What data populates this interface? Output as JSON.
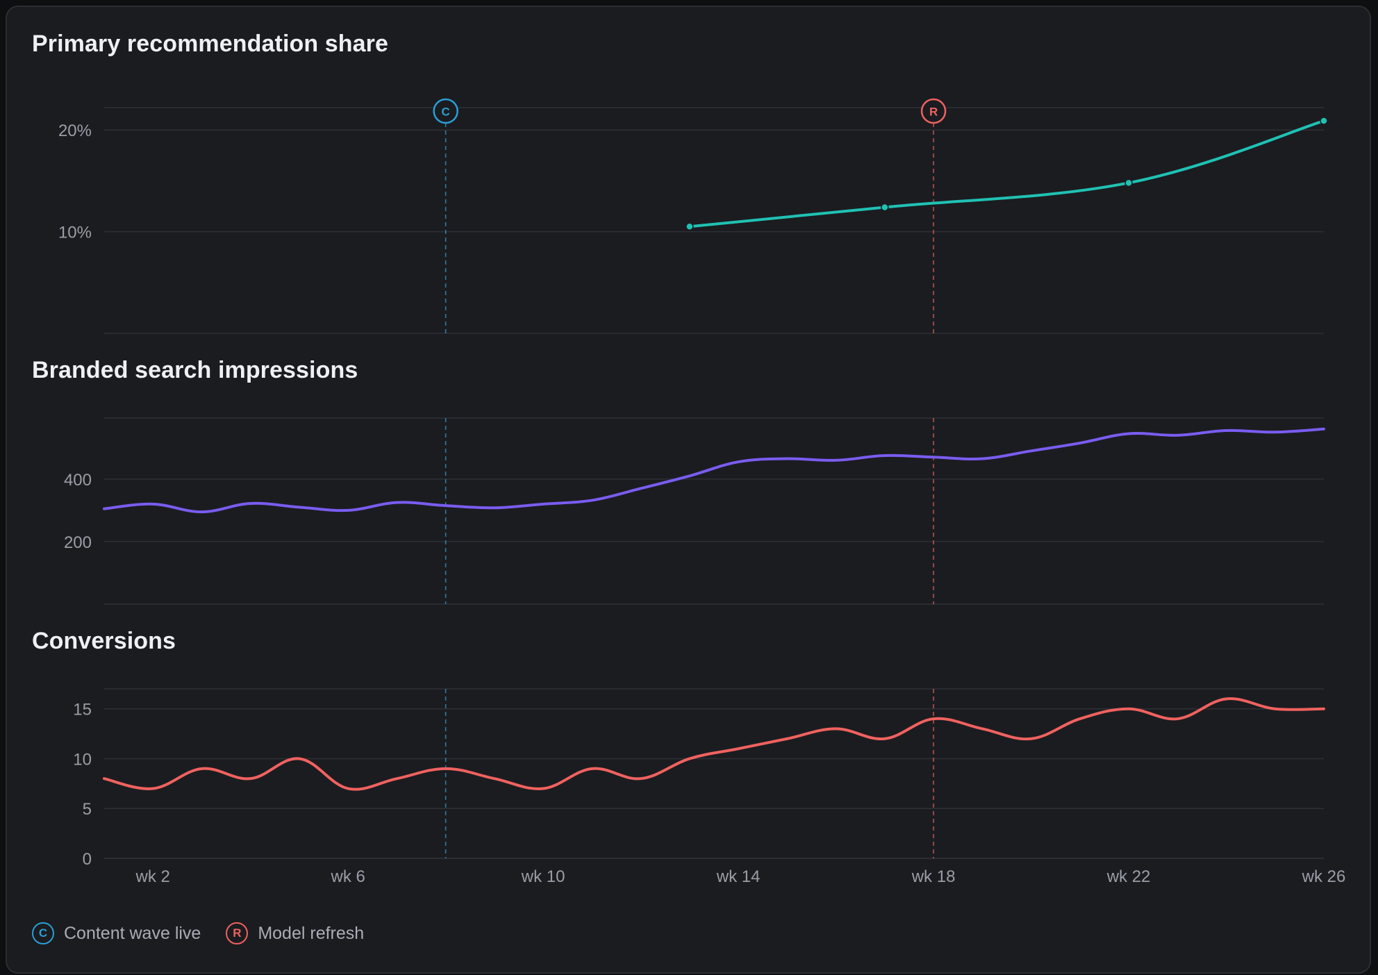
{
  "colors": {
    "background": "#1b1c20",
    "grid": "#2e3035",
    "tick_text": "#9a9ea6",
    "title_text": "#eef0f3",
    "content_wave": "#2a9fd6",
    "model_refresh": "#f0625f",
    "series_share": "#1fc2b4",
    "series_impressions": "#7a5cf0",
    "series_conversions": "#f0625f"
  },
  "markers": [
    {
      "id": "content_wave",
      "letter": "C",
      "label": "Content wave live",
      "x": 8,
      "color": "#2a9fd6"
    },
    {
      "id": "model_refresh",
      "letter": "R",
      "label": "Model refresh",
      "x": 18,
      "color": "#f0625f"
    }
  ],
  "chart_data": [
    {
      "type": "line",
      "title": "Primary recommendation share",
      "xlim": [
        1,
        26
      ],
      "ylim": [
        0,
        22.2
      ],
      "yticks": [
        {
          "value": 10,
          "label": "10%"
        },
        {
          "value": 20,
          "label": "20%"
        }
      ],
      "series": [
        {
          "color": "#1fc2b4",
          "marker_points": true,
          "x": [
            13,
            17,
            22,
            26
          ],
          "y": [
            10.5,
            12.4,
            14.8,
            20.9
          ]
        }
      ]
    },
    {
      "type": "line",
      "title": "Branded search impressions",
      "xlim": [
        1,
        26
      ],
      "ylim": [
        0,
        595
      ],
      "yticks": [
        {
          "value": 200,
          "label": "200"
        },
        {
          "value": 400,
          "label": "400"
        }
      ],
      "series": [
        {
          "color": "#7a5cf0",
          "marker_points": false,
          "x": [
            1,
            2,
            3,
            4,
            5,
            6,
            7,
            8,
            9,
            10,
            11,
            12,
            13,
            14,
            15,
            16,
            17,
            18,
            19,
            20,
            21,
            22,
            23,
            24,
            25,
            26
          ],
          "y": [
            305,
            320,
            295,
            322,
            310,
            300,
            325,
            315,
            308,
            320,
            332,
            370,
            410,
            455,
            465,
            460,
            475,
            470,
            465,
            490,
            515,
            545,
            540,
            555,
            550,
            560
          ]
        }
      ]
    },
    {
      "type": "line",
      "title": "Conversions",
      "xlim": [
        1,
        26
      ],
      "ylim": [
        0,
        17
      ],
      "yticks": [
        {
          "value": 0,
          "label": "0"
        },
        {
          "value": 5,
          "label": "5"
        },
        {
          "value": 10,
          "label": "10"
        },
        {
          "value": 15,
          "label": "15"
        }
      ],
      "xticks": [
        {
          "value": 2,
          "label": "wk 2"
        },
        {
          "value": 6,
          "label": "wk 6"
        },
        {
          "value": 10,
          "label": "wk 10"
        },
        {
          "value": 14,
          "label": "wk 14"
        },
        {
          "value": 18,
          "label": "wk 18"
        },
        {
          "value": 22,
          "label": "wk 22"
        },
        {
          "value": 26,
          "label": "wk 26"
        }
      ],
      "series": [
        {
          "color": "#f0625f",
          "marker_points": false,
          "x": [
            1,
            2,
            3,
            4,
            5,
            6,
            7,
            8,
            9,
            10,
            11,
            12,
            13,
            14,
            15,
            16,
            17,
            18,
            19,
            20,
            21,
            22,
            23,
            24,
            25,
            26
          ],
          "y": [
            8,
            7,
            9,
            8,
            10,
            7,
            8,
            9,
            8,
            7,
            9,
            8,
            10,
            11,
            12,
            13,
            12,
            14,
            13,
            12,
            14,
            15,
            14,
            16,
            15,
            15
          ]
        }
      ]
    }
  ]
}
